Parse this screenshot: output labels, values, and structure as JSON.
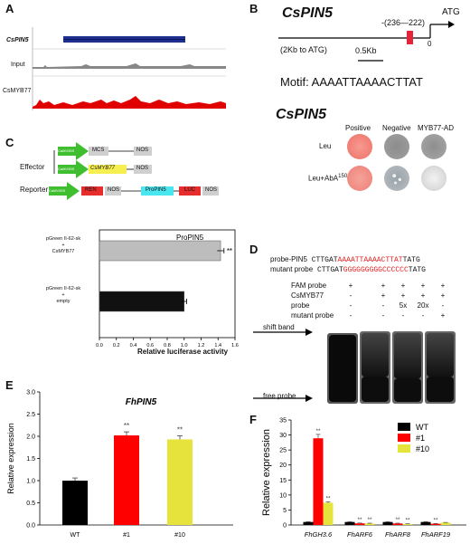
{
  "panels": {
    "A": {
      "label": "A",
      "tracks": [
        "CsPIN5",
        "Input",
        "CsMYB77"
      ]
    },
    "B": {
      "label": "B",
      "gene": "CsPIN5",
      "atg": "ATG",
      "site": "-(236—222)",
      "zero": "0",
      "range": "(2Kb to ATG)",
      "scale": "0.5Kb",
      "motif": "Motif: AAAATTAAAACTTAT",
      "y1h_gene": "CsPIN5",
      "columns": [
        "Positive",
        "Negative",
        "MYB77-AD"
      ],
      "rows": [
        "Leu",
        "Leu+AbA"
      ],
      "row2_sup": "150"
    },
    "C": {
      "label": "C",
      "effector": "Effector",
      "reporter": "Reporter",
      "p35s": "CaMV35S",
      "mcs": "MCS",
      "nos": "NOS",
      "csmyb77": "CsMYB77",
      "ren": "REN",
      "propin5": "ProPIN5",
      "luc": "LUC",
      "chart_title": "ProPIN5",
      "bar1_line1": "pGreen II-62-sk",
      "bar1_line2": "+",
      "bar1_line3": "CsMYB77",
      "bar2_line1": "pGreen II-62-sk",
      "bar2_line2": "+",
      "bar2_line3": "empty",
      "sig": "**"
    },
    "D": {
      "label": "D",
      "probe_name": "probe-PIN5",
      "probe_pre": "CTTGAT",
      "probe_red": "AAAATTAAAACTTAT",
      "probe_post": "TATG",
      "mutant_name": "mutant probe",
      "mutant_pre": "CTTGAT",
      "mutant_red": "GGGGGGGGGCCCCCC",
      "mutant_post": "TATG",
      "rows": [
        "FAM probe",
        "CsMYB77",
        "probe",
        "mutant probe"
      ],
      "shift": "shift band",
      "free": "free probe"
    },
    "E": {
      "label": "E",
      "sig": "**"
    },
    "F": {
      "label": "F",
      "sig": "**"
    }
  },
  "chart_data": [
    {
      "type": "bar",
      "title": "ProPIN5",
      "orientation": "horizontal",
      "categories": [
        "pGreen II-62-sk + CsMYB77",
        "pGreen II-62-sk + empty"
      ],
      "values": [
        1.43,
        1.0
      ],
      "errors": [
        0.04,
        0.03
      ],
      "colors": [
        "#bdbdbd",
        "#111111"
      ],
      "xlabel": "Relative luciferase activity",
      "xlim": [
        0,
        1.6
      ],
      "xticks": [
        "0.0",
        "0.2",
        "0.4",
        "0.6",
        "0.8",
        "1.0",
        "1.2",
        "1.4",
        "1.6"
      ],
      "significance": [
        "**",
        ""
      ]
    },
    {
      "type": "bar",
      "title": "FhPIN5",
      "categories": [
        "WT",
        "#1",
        "#10"
      ],
      "values": [
        1.0,
        2.02,
        1.93
      ],
      "errors": [
        0.06,
        0.08,
        0.08
      ],
      "colors": [
        "#000000",
        "#ff0000",
        "#e6e33d"
      ],
      "ylabel": "Relative expression",
      "ylim": [
        0,
        3.0
      ],
      "yticks": [
        "0.0",
        "0.5",
        "1.0",
        "1.5",
        "2.0",
        "2.5",
        "3.0"
      ],
      "significance": [
        "",
        "**",
        "**"
      ]
    },
    {
      "type": "bar",
      "categories": [
        "FhGH3.6",
        "FhARF6",
        "FhARF8",
        "FhARF19"
      ],
      "series": [
        {
          "name": "WT",
          "values": [
            1.0,
            1.0,
            1.0,
            1.0
          ],
          "errors": [
            0.1,
            0.08,
            0.08,
            0.1
          ],
          "color": "#000000"
        },
        {
          "name": "#1",
          "values": [
            28.9,
            0.55,
            0.5,
            0.4
          ],
          "errors": [
            1.3,
            0.1,
            0.1,
            0.1
          ],
          "color": "#ff0000"
        },
        {
          "name": "#10",
          "values": [
            7.4,
            0.5,
            0.3,
            0.75
          ],
          "errors": [
            0.3,
            0.1,
            0.1,
            0.1
          ],
          "color": "#e6e33d"
        }
      ],
      "significance": [
        [
          "",
          "**",
          "**"
        ],
        [
          "",
          "**",
          "**"
        ],
        [
          "",
          "**",
          "**"
        ],
        [
          "",
          "**",
          ""
        ]
      ],
      "ylabel": "Relative expression",
      "ylim": [
        0,
        35
      ],
      "yticks": [
        "0",
        "5",
        "10",
        "15",
        "20",
        "25",
        "30",
        "35"
      ],
      "legend": "top-right"
    }
  ]
}
